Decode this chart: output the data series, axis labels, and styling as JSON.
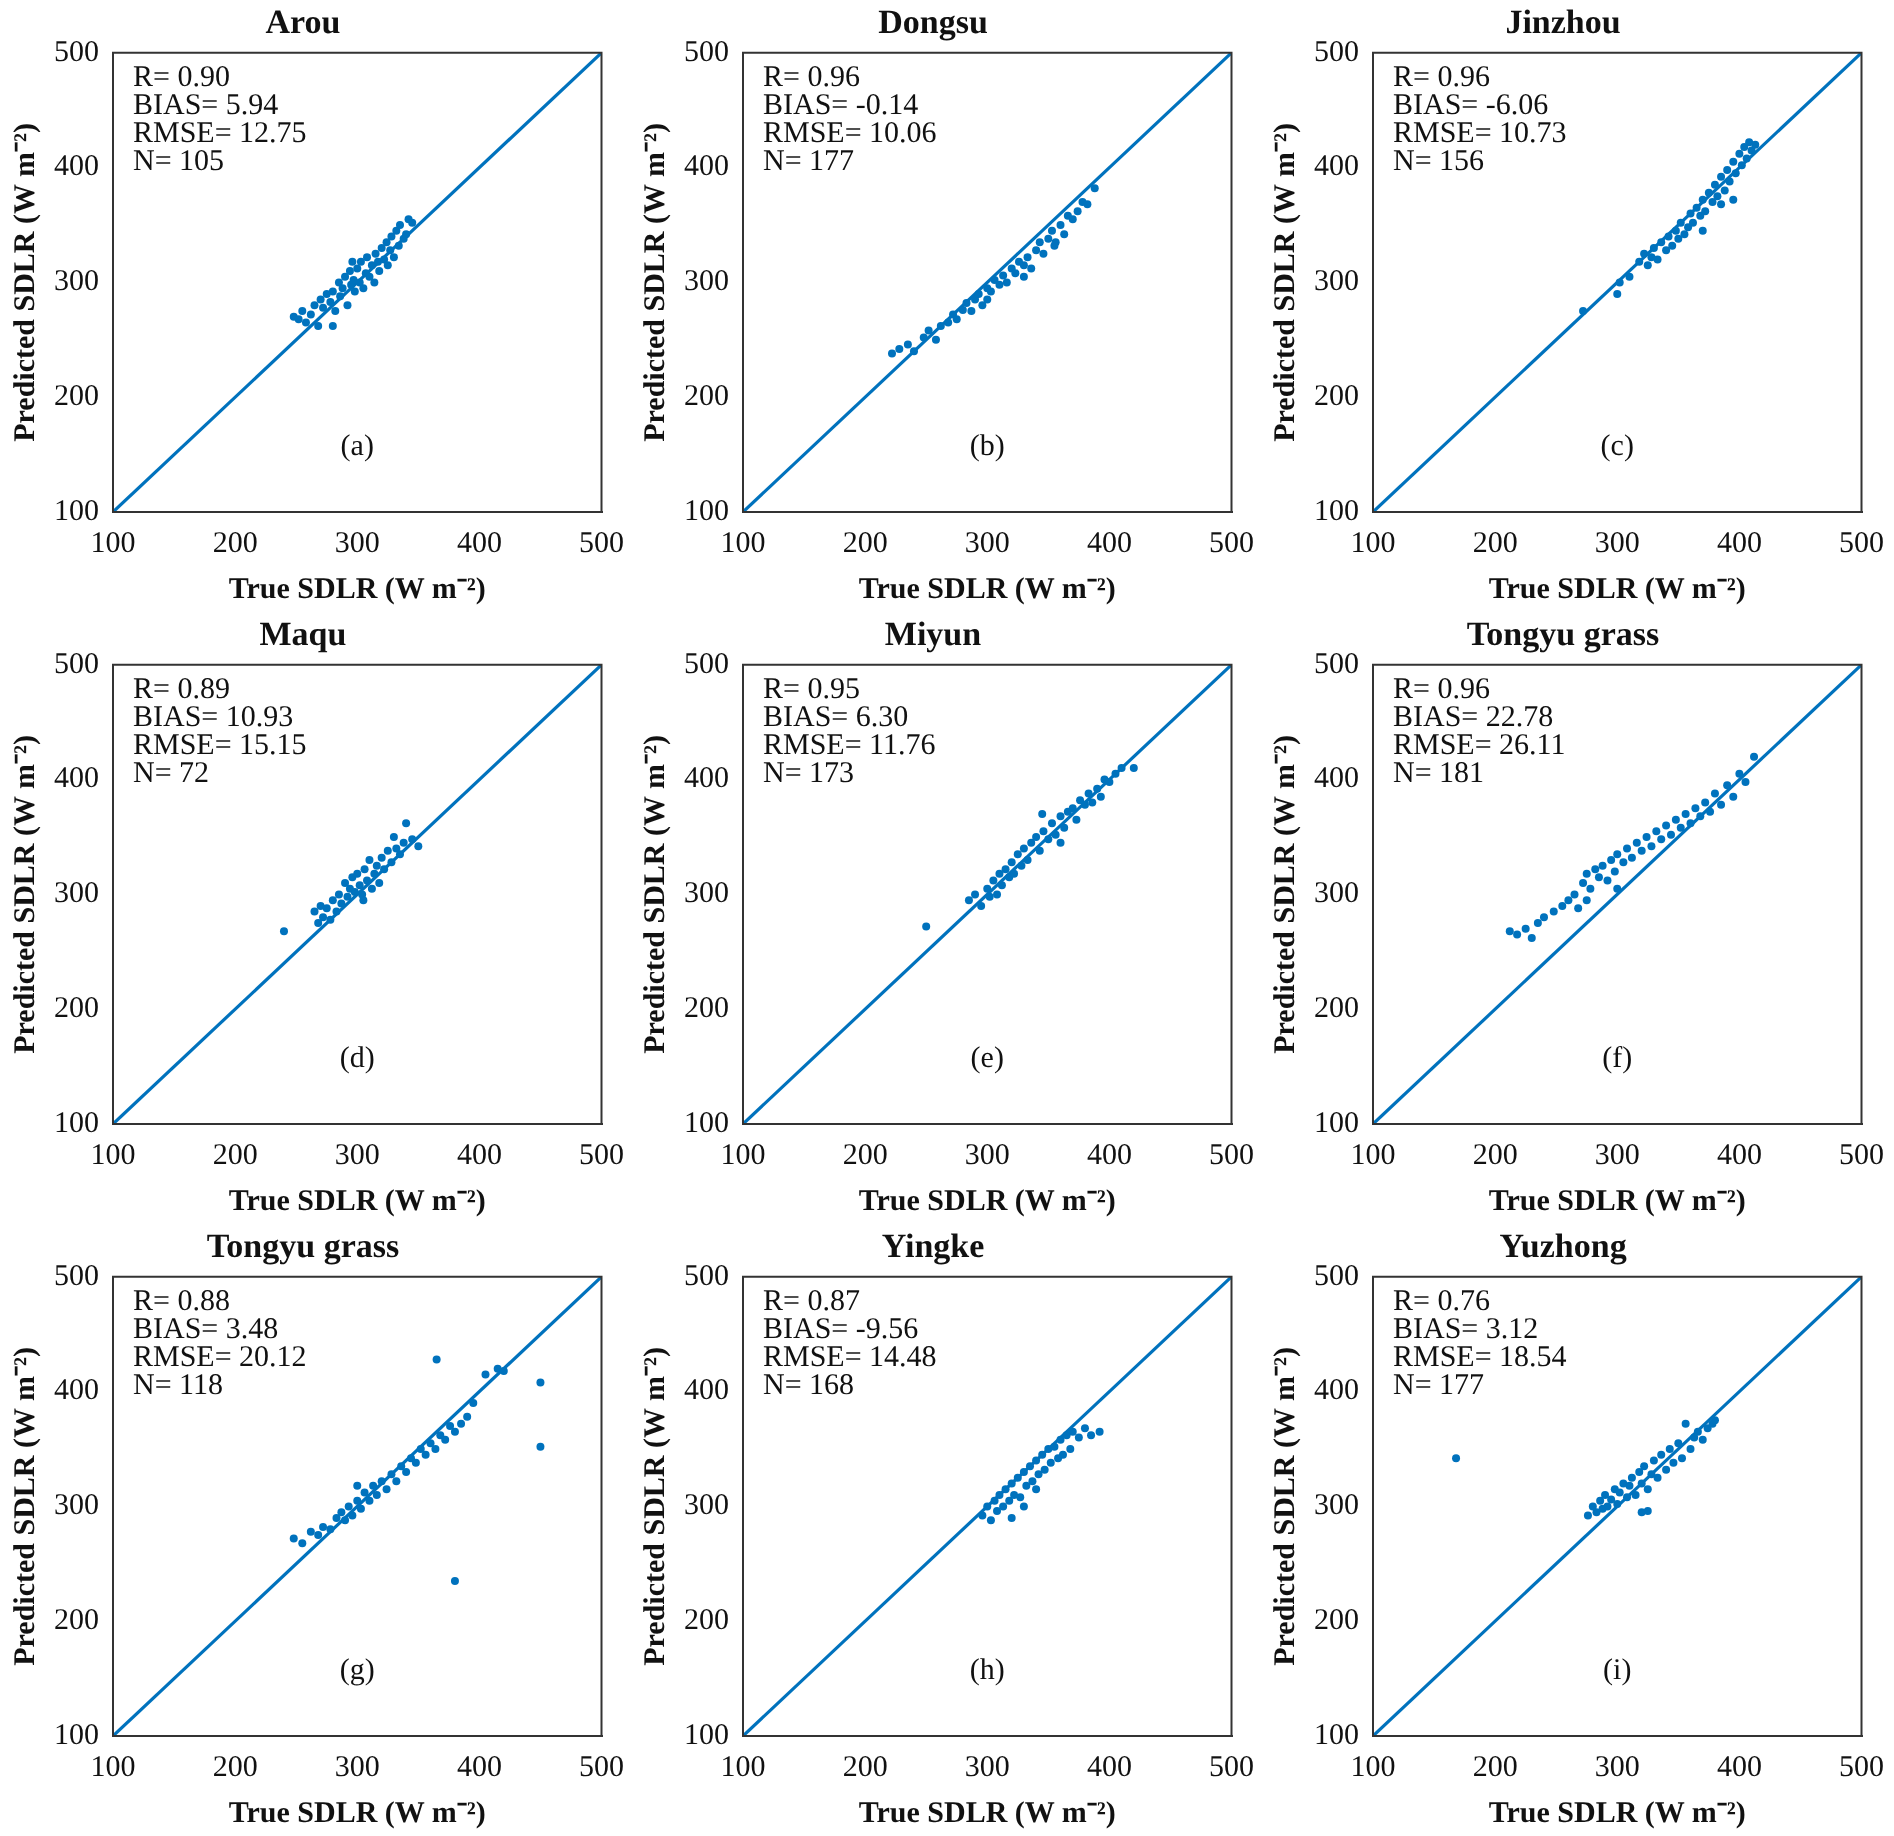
{
  "chart_data": [
    {
      "type": "scatter",
      "title": "Arou",
      "xlabel": "True SDLR (W m⁻²)",
      "ylabel": "Predicted SDLR (W m⁻²)",
      "xlim": [
        100,
        500
      ],
      "ylim": [
        100,
        500
      ],
      "xticks": [
        100,
        200,
        300,
        400,
        500
      ],
      "yticks": [
        100,
        200,
        300,
        400,
        500
      ],
      "marker": "circle",
      "annotations": [
        "R= 0.90",
        "BIAS= 5.94",
        "RMSE= 12.75",
        "N= 105",
        "(a)"
      ],
      "series": [
        {
          "type": "scatter",
          "color": "#0072bd",
          "x": [
            248,
            252,
            255,
            258,
            262,
            265,
            268,
            270,
            272,
            275,
            278,
            280,
            282,
            285,
            286,
            288,
            290,
            292,
            294,
            295,
            297,
            298,
            300,
            302,
            303,
            305,
            307,
            308,
            310,
            312,
            314,
            315,
            317,
            318,
            320,
            322,
            324,
            325,
            327,
            328,
            330,
            332,
            334,
            335,
            338,
            340,
            342,
            345,
            280,
            296
          ],
          "values": [
            270,
            268,
            275,
            265,
            272,
            280,
            262,
            285,
            278,
            290,
            283,
            292,
            275,
            300,
            288,
            295,
            305,
            280,
            310,
            298,
            302,
            292,
            312,
            300,
            318,
            295,
            308,
            322,
            305,
            315,
            300,
            325,
            318,
            310,
            330,
            320,
            335,
            315,
            328,
            340,
            322,
            345,
            332,
            350,
            338,
            342,
            355,
            352,
            262,
            318
          ]
        },
        {
          "type": "line",
          "marker": "none",
          "color": "#0072bd",
          "x": [
            100,
            500
          ],
          "values": [
            100,
            500
          ]
        }
      ]
    },
    {
      "type": "scatter",
      "title": "Dongsu",
      "xlabel": "True SDLR (W m⁻²)",
      "ylabel": "Predicted SDLR (W m⁻²)",
      "xlim": [
        100,
        500
      ],
      "ylim": [
        100,
        500
      ],
      "xticks": [
        100,
        200,
        300,
        400,
        500
      ],
      "yticks": [
        100,
        200,
        300,
        400,
        500
      ],
      "marker": "circle",
      "annotations": [
        "R= 0.96",
        "BIAS= -0.14",
        "RMSE= 10.06",
        "N= 177",
        "(b)"
      ],
      "series": [
        {
          "type": "scatter",
          "color": "#0072bd",
          "x": [
            222,
            228,
            235,
            240,
            248,
            252,
            258,
            262,
            268,
            272,
            275,
            280,
            283,
            287,
            290,
            293,
            296,
            300,
            303,
            306,
            310,
            313,
            316,
            320,
            323,
            326,
            330,
            333,
            336,
            340,
            343,
            346,
            350,
            353,
            356,
            360,
            363,
            366,
            370,
            374,
            378,
            382,
            388,
            300,
            330,
            355
          ],
          "values": [
            238,
            242,
            246,
            240,
            252,
            258,
            250,
            262,
            265,
            272,
            268,
            276,
            282,
            275,
            285,
            290,
            280,
            295,
            292,
            302,
            298,
            306,
            300,
            312,
            308,
            318,
            315,
            322,
            312,
            328,
            335,
            325,
            338,
            345,
            335,
            350,
            342,
            358,
            355,
            362,
            370,
            368,
            382,
            285,
            305,
            332
          ]
        },
        {
          "type": "line",
          "marker": "none",
          "color": "#0072bd",
          "x": [
            100,
            500
          ],
          "values": [
            100,
            500
          ]
        }
      ]
    },
    {
      "type": "scatter",
      "title": "Jinzhou",
      "xlabel": "True SDLR (W m⁻²)",
      "ylabel": "Predicted SDLR (W m⁻²)",
      "xlim": [
        100,
        500
      ],
      "ylim": [
        100,
        500
      ],
      "xticks": [
        100,
        200,
        300,
        400,
        500
      ],
      "yticks": [
        100,
        200,
        300,
        400,
        500
      ],
      "marker": "circle",
      "annotations": [
        "R= 0.96",
        "BIAS= -6.06",
        "RMSE= 10.73",
        "N= 156",
        "(c)"
      ],
      "series": [
        {
          "type": "scatter",
          "color": "#0072bd",
          "x": [
            272,
            300,
            302,
            310,
            318,
            322,
            325,
            328,
            330,
            333,
            336,
            340,
            342,
            345,
            348,
            350,
            352,
            355,
            358,
            360,
            362,
            365,
            368,
            370,
            372,
            375,
            378,
            380,
            382,
            385,
            388,
            390,
            392,
            395,
            397,
            400,
            402,
            404,
            406,
            408,
            410,
            413,
            395,
            385,
            370
          ],
          "values": [
            275,
            290,
            300,
            305,
            318,
            325,
            315,
            322,
            330,
            320,
            335,
            328,
            340,
            332,
            345,
            338,
            352,
            342,
            348,
            360,
            352,
            365,
            358,
            372,
            362,
            378,
            370,
            385,
            375,
            392,
            380,
            398,
            388,
            405,
            395,
            412,
            402,
            418,
            408,
            422,
            415,
            420,
            372,
            368,
            345
          ]
        },
        {
          "type": "line",
          "marker": "none",
          "color": "#0072bd",
          "x": [
            100,
            500
          ],
          "values": [
            100,
            500
          ]
        }
      ]
    },
    {
      "type": "scatter",
      "title": "Maqu",
      "xlabel": "True SDLR (W m⁻²)",
      "ylabel": "Predicted SDLR (W m⁻²)",
      "xlim": [
        100,
        500
      ],
      "ylim": [
        100,
        500
      ],
      "xticks": [
        100,
        200,
        300,
        400,
        500
      ],
      "yticks": [
        100,
        200,
        300,
        400,
        500
      ],
      "marker": "circle",
      "annotations": [
        "R= 0.89",
        "BIAS= 10.93",
        "RMSE= 15.15",
        "N= 72",
        "(d)"
      ],
      "series": [
        {
          "type": "scatter",
          "color": "#0072bd",
          "x": [
            240,
            265,
            268,
            270,
            272,
            275,
            278,
            280,
            283,
            285,
            287,
            290,
            292,
            294,
            296,
            298,
            300,
            302,
            304,
            306,
            308,
            310,
            312,
            314,
            316,
            318,
            320,
            322,
            325,
            328,
            330,
            332,
            335,
            338,
            340,
            345,
            350,
            305
          ],
          "values": [
            268,
            285,
            275,
            290,
            280,
            288,
            278,
            295,
            285,
            300,
            292,
            310,
            298,
            305,
            315,
            302,
            318,
            308,
            300,
            322,
            312,
            330,
            305,
            318,
            325,
            310,
            332,
            322,
            338,
            328,
            350,
            340,
            335,
            345,
            362,
            348,
            342,
            295
          ]
        },
        {
          "type": "line",
          "marker": "none",
          "color": "#0072bd",
          "x": [
            100,
            500
          ],
          "values": [
            100,
            500
          ]
        }
      ]
    },
    {
      "type": "scatter",
      "title": "Miyun",
      "xlabel": "True SDLR (W m⁻²)",
      "ylabel": "Predicted SDLR (W m⁻²)",
      "xlim": [
        100,
        500
      ],
      "ylim": [
        100,
        500
      ],
      "xticks": [
        100,
        200,
        300,
        400,
        500
      ],
      "yticks": [
        100,
        200,
        300,
        400,
        500
      ],
      "marker": "circle",
      "annotations": [
        "R= 0.95",
        "BIAS= 6.30",
        "RMSE= 11.76",
        "N= 173",
        "(e)"
      ],
      "series": [
        {
          "type": "scatter",
          "color": "#0072bd",
          "x": [
            250,
            285,
            290,
            295,
            300,
            302,
            305,
            308,
            310,
            312,
            315,
            318,
            320,
            322,
            325,
            328,
            330,
            333,
            336,
            340,
            343,
            346,
            350,
            353,
            356,
            360,
            363,
            366,
            370,
            373,
            376,
            380,
            383,
            386,
            390,
            393,
            396,
            400,
            405,
            410,
            420,
            360,
            345
          ],
          "values": [
            272,
            295,
            300,
            290,
            305,
            298,
            312,
            300,
            318,
            308,
            322,
            315,
            328,
            318,
            335,
            325,
            340,
            330,
            345,
            350,
            338,
            355,
            348,
            362,
            352,
            368,
            358,
            372,
            375,
            365,
            382,
            378,
            388,
            380,
            392,
            385,
            400,
            398,
            405,
            410,
            410,
            345,
            370
          ]
        },
        {
          "type": "line",
          "marker": "none",
          "color": "#0072bd",
          "x": [
            100,
            500
          ],
          "values": [
            100,
            500
          ]
        }
      ]
    },
    {
      "type": "scatter",
      "title": "Tongyu grass",
      "xlabel": "True SDLR (W m⁻²)",
      "ylabel": "Predicted SDLR (W m⁻²)",
      "xlim": [
        100,
        500
      ],
      "ylim": [
        100,
        500
      ],
      "xticks": [
        100,
        200,
        300,
        400,
        500
      ],
      "yticks": [
        100,
        200,
        300,
        400,
        500
      ],
      "marker": "circle",
      "annotations": [
        "R= 0.96",
        "BIAS= 22.78",
        "RMSE= 26.11",
        "N= 181",
        "(f)"
      ],
      "series": [
        {
          "type": "scatter",
          "color": "#0072bd",
          "x": [
            212,
            218,
            225,
            230,
            235,
            240,
            248,
            255,
            260,
            265,
            268,
            272,
            275,
            278,
            282,
            285,
            288,
            292,
            295,
            298,
            300,
            305,
            308,
            312,
            316,
            320,
            324,
            328,
            332,
            336,
            340,
            344,
            348,
            352,
            356,
            360,
            364,
            368,
            372,
            376,
            380,
            385,
            390,
            395,
            400,
            405,
            412,
            275,
            300
          ],
          "values": [
            268,
            265,
            270,
            262,
            275,
            280,
            285,
            290,
            295,
            300,
            288,
            310,
            318,
            305,
            322,
            315,
            325,
            312,
            330,
            320,
            335,
            328,
            340,
            332,
            345,
            338,
            350,
            342,
            355,
            348,
            360,
            352,
            365,
            358,
            370,
            362,
            375,
            368,
            380,
            372,
            388,
            378,
            395,
            385,
            405,
            398,
            420,
            295,
            305
          ]
        },
        {
          "type": "line",
          "marker": "none",
          "color": "#0072bd",
          "x": [
            100,
            500
          ],
          "values": [
            100,
            500
          ]
        }
      ]
    },
    {
      "type": "scatter",
      "title": "Tongyu grass",
      "xlabel": "True SDLR (W m⁻²)",
      "ylabel": "Predicted SDLR (W m⁻²)",
      "xlim": [
        100,
        500
      ],
      "ylim": [
        100,
        500
      ],
      "xticks": [
        100,
        200,
        300,
        400,
        500
      ],
      "yticks": [
        100,
        200,
        300,
        400,
        500
      ],
      "marker": "circle",
      "annotations": [
        "R= 0.88",
        "BIAS= 3.48",
        "RMSE= 20.12",
        "N= 118",
        "(g)"
      ],
      "series": [
        {
          "type": "scatter",
          "color": "#0072bd",
          "x": [
            248,
            255,
            262,
            268,
            272,
            278,
            283,
            287,
            290,
            293,
            296,
            300,
            303,
            306,
            310,
            313,
            316,
            320,
            324,
            328,
            332,
            336,
            340,
            344,
            348,
            352,
            356,
            360,
            364,
            368,
            372,
            376,
            380,
            385,
            390,
            395,
            405,
            415,
            420,
            365,
            380,
            450,
            450,
            300
          ],
          "values": [
            272,
            268,
            278,
            275,
            282,
            280,
            290,
            295,
            288,
            300,
            292,
            305,
            298,
            312,
            305,
            318,
            310,
            322,
            315,
            328,
            322,
            335,
            330,
            342,
            338,
            350,
            345,
            355,
            350,
            362,
            358,
            370,
            365,
            372,
            378,
            390,
            415,
            420,
            418,
            428,
            235,
            408,
            352,
            318
          ]
        },
        {
          "type": "line",
          "marker": "none",
          "color": "#0072bd",
          "x": [
            100,
            500
          ],
          "values": [
            100,
            500
          ]
        }
      ]
    },
    {
      "type": "scatter",
      "title": "Yingke",
      "xlabel": "True SDLR (W m⁻²)",
      "ylabel": "Predicted SDLR (W m⁻²)",
      "xlim": [
        100,
        500
      ],
      "ylim": [
        100,
        500
      ],
      "xticks": [
        100,
        200,
        300,
        400,
        500
      ],
      "yticks": [
        100,
        200,
        300,
        400,
        500
      ],
      "marker": "circle",
      "annotations": [
        "R= 0.87",
        "BIAS= -9.56",
        "RMSE= 14.48",
        "N= 168",
        "(h)"
      ],
      "series": [
        {
          "type": "scatter",
          "color": "#0072bd",
          "x": [
            296,
            300,
            303,
            306,
            308,
            310,
            313,
            315,
            318,
            320,
            322,
            325,
            327,
            330,
            332,
            335,
            337,
            340,
            342,
            345,
            347,
            350,
            352,
            355,
            358,
            360,
            362,
            365,
            368,
            370,
            375,
            380,
            385,
            392,
            330,
            340,
            320
          ],
          "values": [
            292,
            300,
            288,
            305,
            296,
            310,
            300,
            315,
            305,
            320,
            310,
            325,
            308,
            330,
            318,
            335,
            322,
            340,
            328,
            345,
            332,
            350,
            338,
            352,
            342,
            358,
            345,
            362,
            350,
            365,
            360,
            368,
            362,
            365,
            300,
            315,
            290
          ]
        },
        {
          "type": "line",
          "marker": "none",
          "color": "#0072bd",
          "x": [
            100,
            500
          ],
          "values": [
            100,
            500
          ]
        }
      ]
    },
    {
      "type": "scatter",
      "title": "Yuzhong",
      "xlabel": "True SDLR (W m⁻²)",
      "ylabel": "Predicted SDLR (W m⁻²)",
      "xlim": [
        100,
        500
      ],
      "ylim": [
        100,
        500
      ],
      "xticks": [
        100,
        200,
        300,
        400,
        500
      ],
      "yticks": [
        100,
        200,
        300,
        400,
        500
      ],
      "marker": "circle",
      "annotations": [
        "R= 0.76",
        "BIAS= 3.12",
        "RMSE= 18.54",
        "N= 177",
        "(i)"
      ],
      "series": [
        {
          "type": "scatter",
          "color": "#0072bd",
          "x": [
            168,
            276,
            280,
            283,
            286,
            288,
            290,
            292,
            295,
            298,
            300,
            302,
            305,
            308,
            310,
            312,
            315,
            318,
            320,
            322,
            325,
            328,
            330,
            333,
            336,
            340,
            343,
            346,
            350,
            353,
            356,
            360,
            363,
            366,
            370,
            374,
            378,
            380,
            320,
            325
          ],
          "values": [
            342,
            292,
            300,
            295,
            305,
            298,
            310,
            300,
            306,
            315,
            302,
            312,
            320,
            308,
            318,
            325,
            310,
            330,
            320,
            335,
            315,
            328,
            340,
            325,
            345,
            332,
            350,
            338,
            355,
            342,
            372,
            350,
            360,
            365,
            358,
            368,
            372,
            375,
            295,
            296
          ]
        },
        {
          "type": "line",
          "marker": "none",
          "color": "#0072bd",
          "x": [
            100,
            500
          ],
          "values": [
            100,
            500
          ]
        }
      ]
    }
  ]
}
